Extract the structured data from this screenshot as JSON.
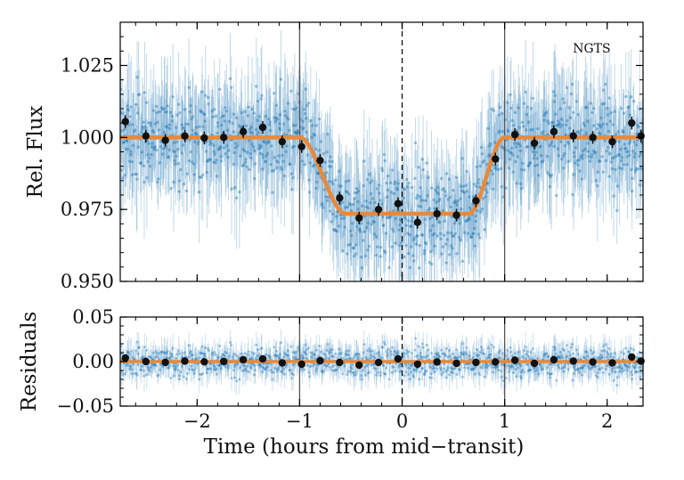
{
  "chart_data": [
    {
      "panel": "lightcurve",
      "type": "scatter",
      "ylabel": "Rel. Flux",
      "xlabel": "",
      "xlim": [
        -2.75,
        2.35
      ],
      "ylim": [
        0.95,
        1.04
      ],
      "yticks": [
        0.95,
        0.975,
        1.0,
        1.025
      ],
      "ytick_labels": [
        "0.950",
        "0.975",
        "1.000",
        "1.025"
      ],
      "xticks": [
        -2,
        -1,
        0,
        1,
        2
      ],
      "annotation": "NGTS",
      "vlines_solid": [
        -1,
        1
      ],
      "vlines_dashed": [
        0
      ],
      "raw_color": "#1f77b4",
      "model_color": "#e8893a",
      "binned_color": "#111111",
      "model": {
        "name": "transit model",
        "baseline": 1.0,
        "depth_flux": 0.9735,
        "ingress_start": -1.0,
        "ingress_end": -0.55,
        "egress_start": 0.65,
        "egress_end": 1.0
      },
      "series": [
        {
          "name": "binned",
          "x": [
            -2.7,
            -2.5,
            -2.31,
            -2.12,
            -1.93,
            -1.74,
            -1.55,
            -1.36,
            -1.17,
            -0.98,
            -0.8,
            -0.61,
            -0.42,
            -0.23,
            -0.04,
            0.15,
            0.34,
            0.53,
            0.72,
            0.91,
            1.1,
            1.29,
            1.48,
            1.67,
            1.86,
            2.05,
            2.24,
            2.33
          ],
          "y": [
            1.0055,
            1.0005,
            0.999,
            1.0005,
            0.9998,
            1.0,
            1.002,
            1.0035,
            0.9985,
            0.9968,
            0.992,
            0.979,
            0.972,
            0.975,
            0.977,
            0.9705,
            0.9735,
            0.973,
            0.978,
            0.9925,
            1.001,
            0.998,
            1.002,
            1.0005,
            1.0,
            0.9985,
            1.005,
            1.0005
          ]
        }
      ]
    },
    {
      "panel": "residuals",
      "type": "scatter",
      "xlabel": "Time (hours from mid−transit)",
      "ylabel": "Residuals",
      "xlim": [
        -2.75,
        2.35
      ],
      "ylim": [
        -0.05,
        0.05
      ],
      "yticks": [
        -0.05,
        0.0,
        0.05
      ],
      "ytick_labels": [
        "−0.05",
        "0.00",
        "0.05"
      ],
      "xticks": [
        -2,
        -1,
        0,
        1,
        2
      ],
      "xtick_labels": [
        "−2",
        "−1",
        "0",
        "1",
        "2"
      ],
      "vlines_solid": [
        -1,
        1
      ],
      "vlines_dashed": [
        0
      ],
      "series": [
        {
          "name": "binned residuals",
          "x": [
            -2.7,
            -2.5,
            -2.31,
            -2.12,
            -1.93,
            -1.74,
            -1.55,
            -1.36,
            -1.17,
            -0.98,
            -0.8,
            -0.61,
            -0.42,
            -0.23,
            -0.04,
            0.15,
            0.34,
            0.53,
            0.72,
            0.91,
            1.1,
            1.29,
            1.48,
            1.67,
            1.86,
            2.05,
            2.24,
            2.33
          ],
          "y": [
            0.004,
            0.0,
            -0.001,
            0.0005,
            -0.0003,
            0.0,
            0.002,
            0.003,
            -0.0015,
            -0.003,
            0.001,
            -0.001,
            -0.004,
            -0.001,
            0.003,
            -0.003,
            -0.0005,
            -0.002,
            -0.001,
            -0.0005,
            0.0015,
            -0.002,
            0.002,
            0.0005,
            -0.0005,
            -0.0015,
            0.005,
            0.0005
          ]
        }
      ]
    }
  ]
}
